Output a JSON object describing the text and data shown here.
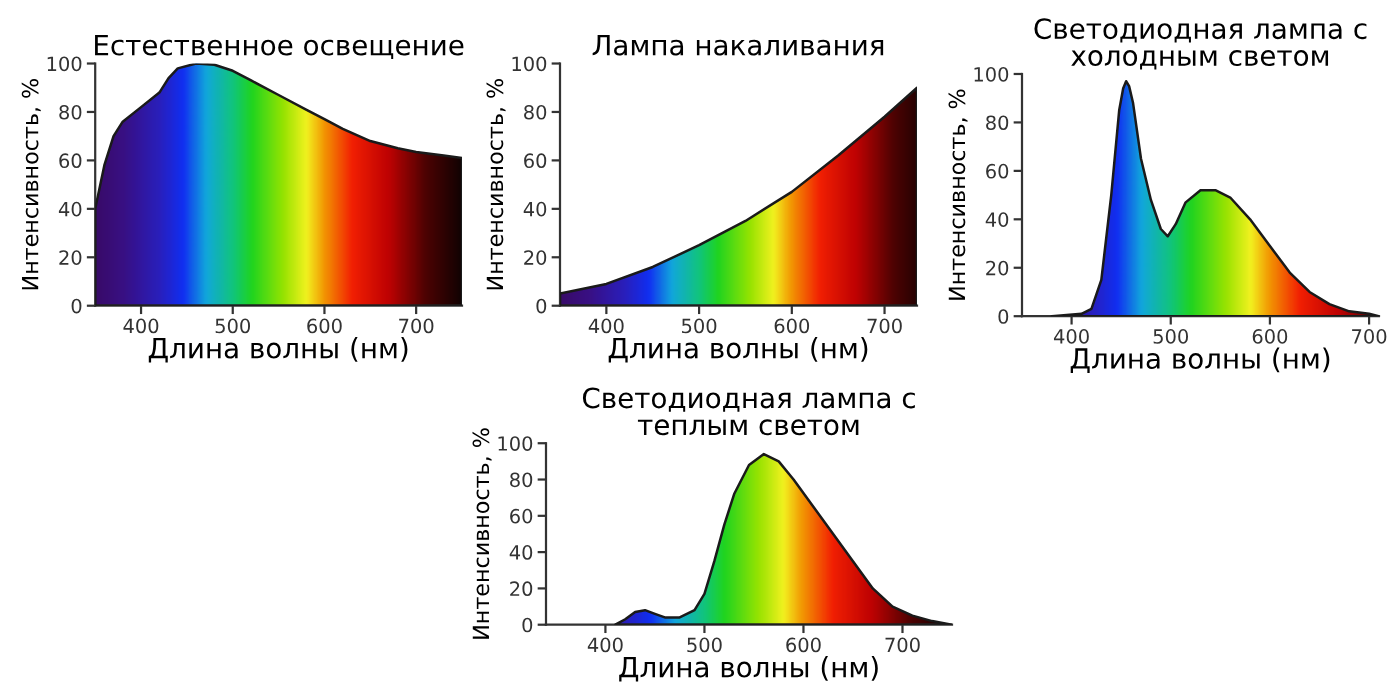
{
  "chart_data": [
    {
      "type": "area",
      "title": "Естественное освещение",
      "xlabel": "Длина волны (нм)",
      "ylabel": "Интенсивность, %",
      "xlim": [
        350,
        750
      ],
      "ylim": [
        0,
        100
      ],
      "xticks": [
        400,
        500,
        600,
        700
      ],
      "yticks": [
        0,
        20,
        40,
        60,
        80,
        100
      ],
      "series": [
        {
          "color": "#1a1a1a",
          "x": [
            350,
            360,
            370,
            380,
            400,
            420,
            430,
            440,
            460,
            480,
            500,
            520,
            550,
            580,
            600,
            620,
            650,
            680,
            700,
            730,
            750
          ],
          "values": [
            40,
            58,
            70,
            76,
            82,
            88,
            94,
            98,
            100,
            99.5,
            97,
            93,
            87,
            81,
            77,
            73,
            68,
            65,
            63.5,
            62,
            61
          ]
        }
      ]
    },
    {
      "type": "area",
      "title": "Лампа накаливания",
      "xlabel": "Длина волны (нм)",
      "ylabel": "Интенсивность, %",
      "xlim": [
        350,
        735
      ],
      "ylim": [
        0,
        100
      ],
      "xticks": [
        400,
        500,
        600,
        700
      ],
      "yticks": [
        0,
        20,
        40,
        60,
        80,
        100
      ],
      "series": [
        {
          "color": "#1a1a1a",
          "x": [
            350,
            400,
            450,
            500,
            550,
            600,
            650,
            700,
            735
          ],
          "values": [
            5,
            9,
            16,
            25,
            35,
            47,
            62,
            78,
            90
          ]
        }
      ]
    },
    {
      "type": "area",
      "title": "Светодиодная лампа с\nхолодным светом",
      "xlabel": "Длина волны (нм)",
      "ylabel": "Интенсивность, %",
      "xlim": [
        350,
        710
      ],
      "ylim": [
        0,
        100
      ],
      "xticks": [
        400,
        500,
        600,
        700
      ],
      "yticks": [
        0,
        20,
        40,
        60,
        80,
        100
      ],
      "series": [
        {
          "color": "#1a1a1a",
          "x": [
            380,
            410,
            420,
            430,
            440,
            448,
            452,
            455,
            458,
            462,
            470,
            480,
            490,
            497,
            505,
            515,
            530,
            545,
            560,
            580,
            600,
            620,
            640,
            660,
            680,
            700,
            710
          ],
          "values": [
            0,
            1,
            3,
            15,
            50,
            85,
            94,
            97,
            95,
            88,
            65,
            48,
            36,
            33,
            38,
            47,
            52,
            52,
            49,
            40,
            29,
            18,
            10,
            5,
            2,
            1,
            0
          ]
        }
      ]
    },
    {
      "type": "area",
      "title": "Светодиодная лампа с\nтеплым светом",
      "xlabel": "Длина волны (нм)",
      "ylabel": "Интенсивность, %",
      "xlim": [
        340,
        750
      ],
      "ylim": [
        0,
        100
      ],
      "xticks": [
        400,
        500,
        600,
        700
      ],
      "yticks": [
        0,
        20,
        40,
        60,
        80,
        100
      ],
      "series": [
        {
          "color": "#1a1a1a",
          "x": [
            410,
            420,
            430,
            440,
            450,
            460,
            475,
            490,
            500,
            510,
            520,
            530,
            545,
            560,
            575,
            590,
            610,
            630,
            650,
            670,
            690,
            710,
            730,
            750
          ],
          "values": [
            0,
            3,
            7,
            8,
            6,
            4,
            4,
            8,
            17,
            35,
            55,
            72,
            88,
            94,
            90,
            80,
            65,
            50,
            35,
            20,
            10,
            5,
            2,
            0
          ]
        }
      ]
    }
  ]
}
